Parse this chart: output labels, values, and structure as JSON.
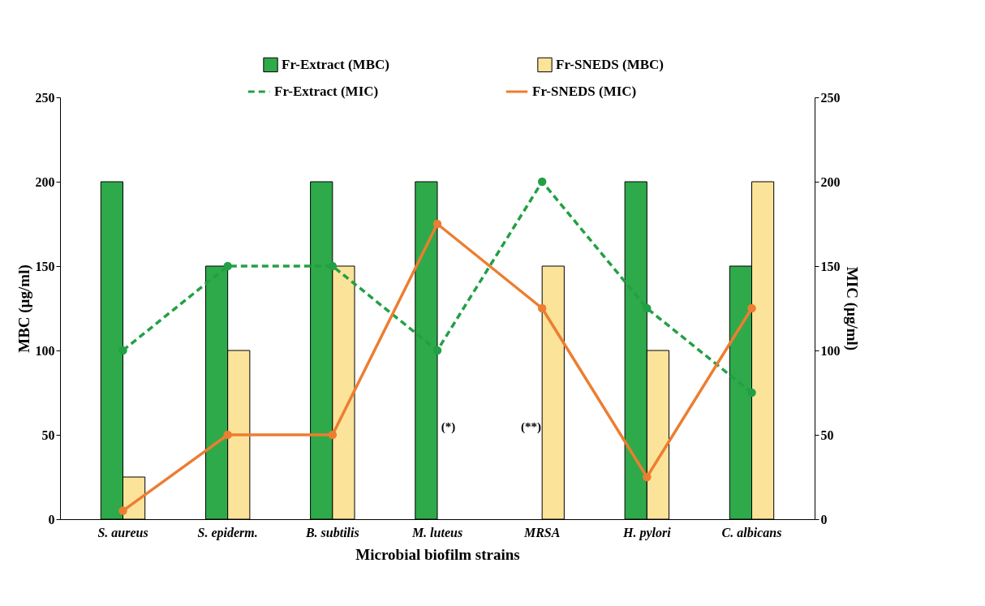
{
  "chart_data": {
    "type": "bar",
    "xlabel": "Microbial biofilm strains",
    "ylabel": "MBC (µg/ml)",
    "y2label": "MIC (µg/ml)",
    "categories": [
      "S. aureus",
      "S. epiderm.",
      "B. subtilis",
      "M. luteus",
      "MRSA",
      "H. pylori",
      "C. albicans"
    ],
    "series": [
      {
        "name": "Fr-Extract (MBC)",
        "color": "#2eaa4a",
        "values": [
          200,
          150,
          200,
          200,
          null,
          200,
          150
        ]
      },
      {
        "name": "Fr-SNEDS (MBC)",
        "color": "#fbe39a",
        "values": [
          25,
          100,
          150,
          null,
          150,
          100,
          200
        ]
      },
      {
        "name": "Fr-Extract (MIC)",
        "type": "line",
        "axis": "y2",
        "color": "#22a045",
        "line_style": "dashed",
        "marker": "circle",
        "values": [
          100,
          150,
          150,
          100,
          200,
          125,
          75
        ]
      },
      {
        "name": "Fr-SNEDS (MIC)",
        "type": "line",
        "axis": "y2",
        "color": "#ed7d31",
        "line_style": "solid",
        "marker": "circle",
        "values": [
          5,
          50,
          50,
          175,
          125,
          25,
          125
        ]
      }
    ],
    "ylim": [
      0,
      250
    ],
    "yticks": [
      0,
      50,
      100,
      150,
      200,
      250
    ],
    "y2lim": [
      0,
      250
    ],
    "y2ticks": [
      0,
      50,
      100,
      150,
      200,
      250
    ],
    "grid": false,
    "legend": "top",
    "annotations": [
      {
        "text": "(*)",
        "x": "M. luteus",
        "y": 55
      },
      {
        "text": "(**)",
        "x": "MRSA",
        "y": 55
      }
    ]
  }
}
